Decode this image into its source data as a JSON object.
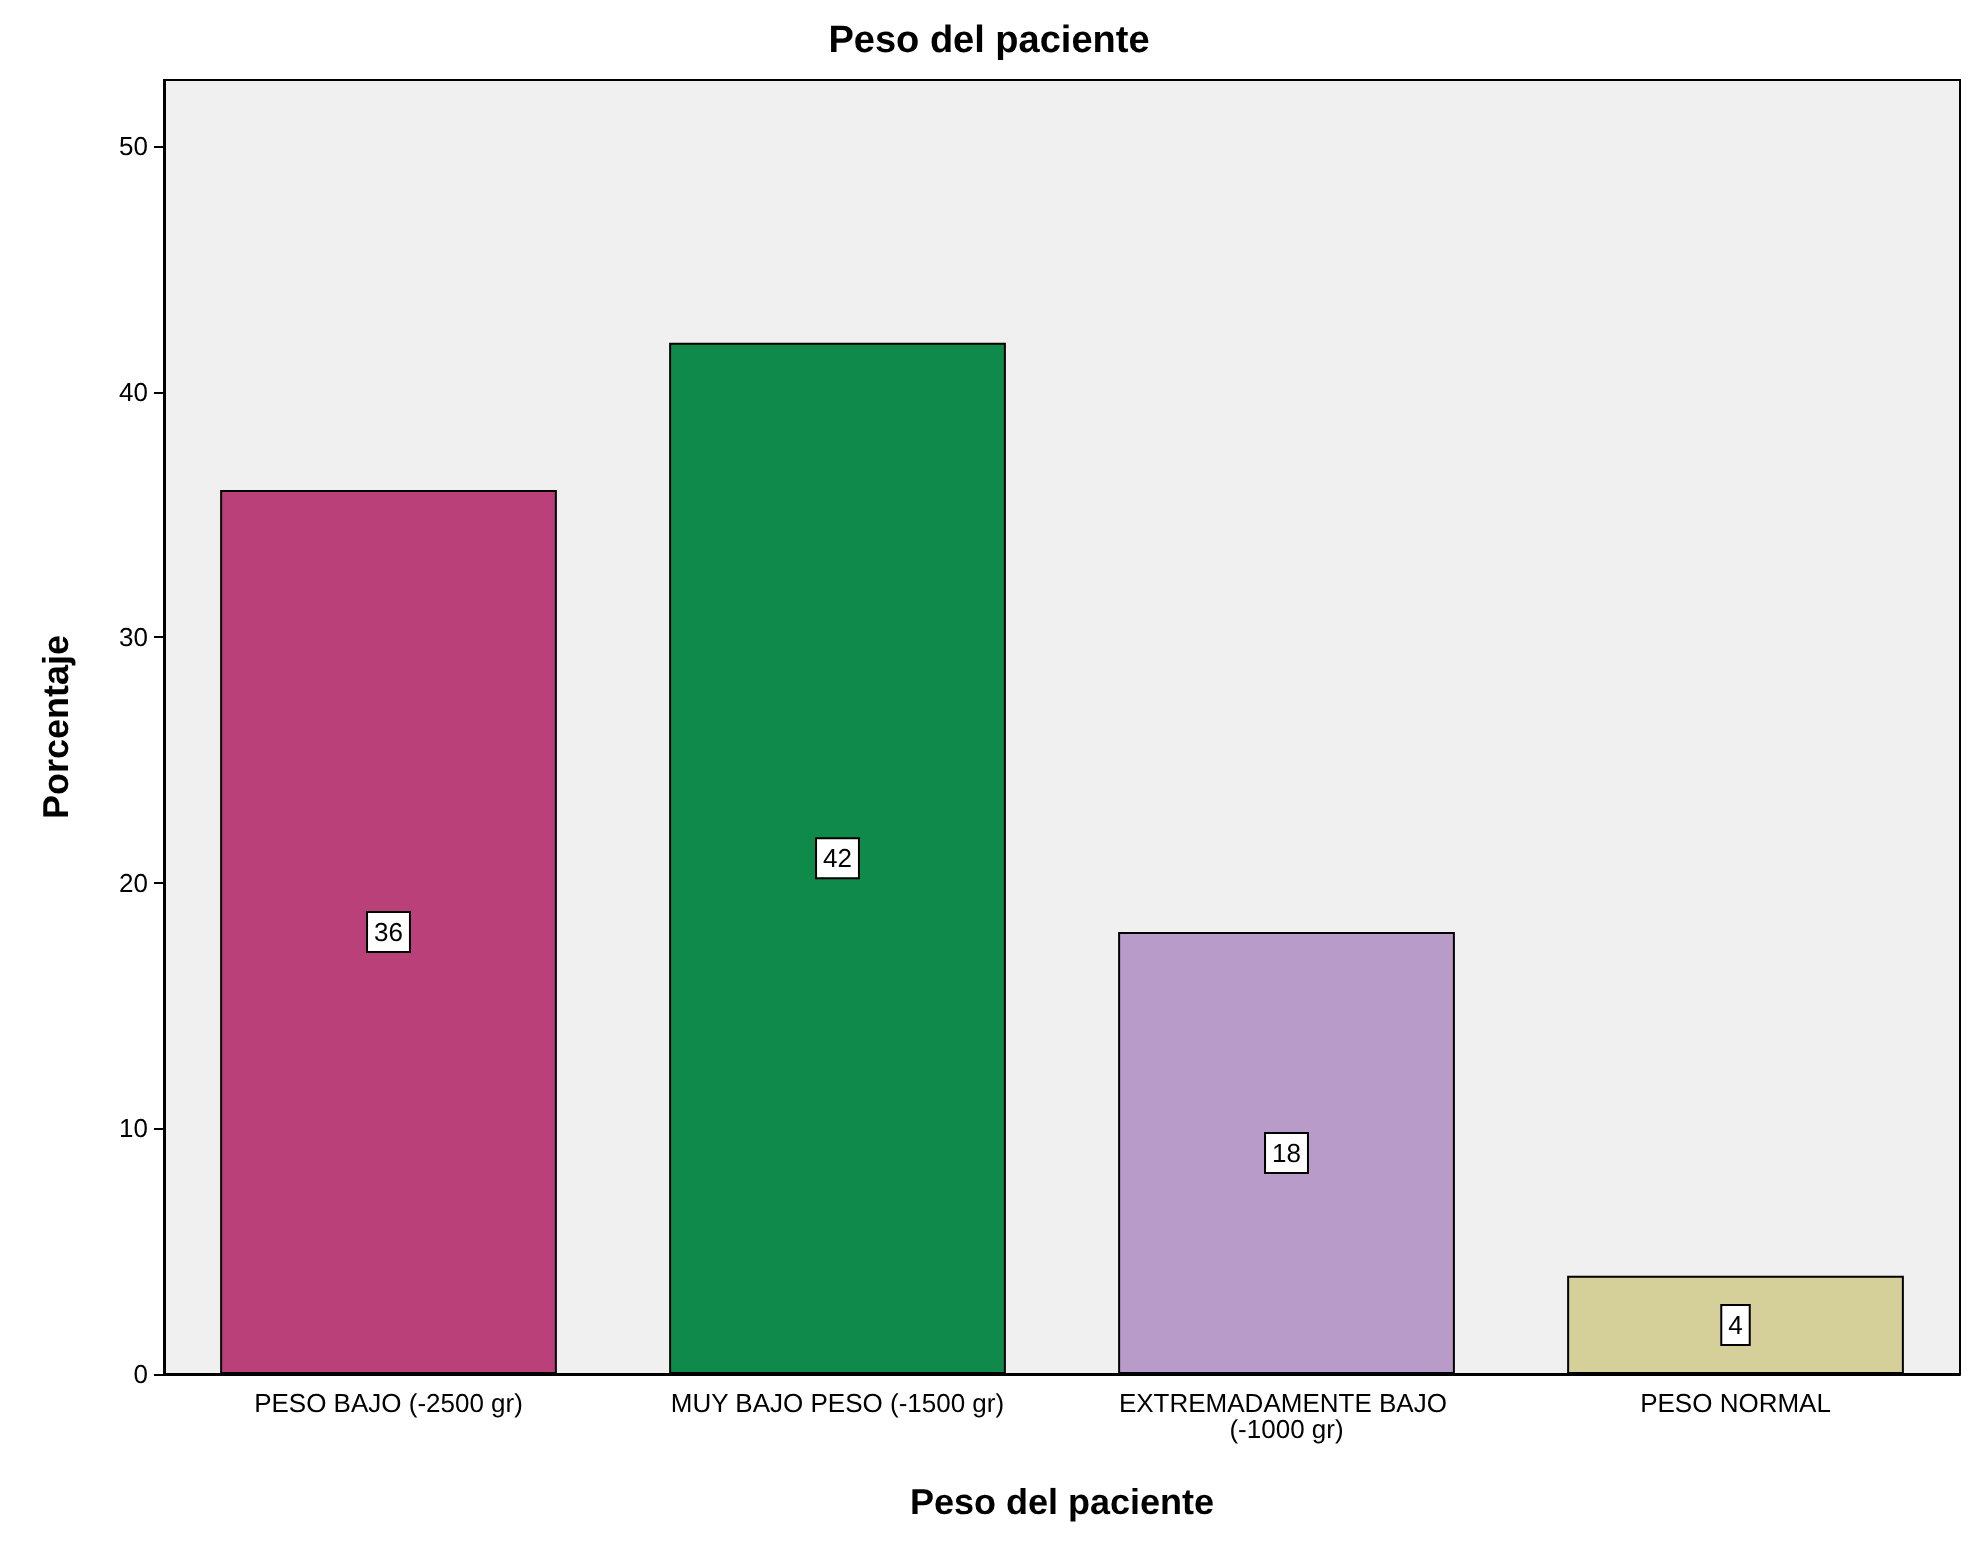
{
  "chart_data": {
    "type": "bar",
    "title": "Peso del paciente",
    "xlabel": "Peso del paciente",
    "ylabel": "Porcentaje",
    "categories": [
      "PESO BAJO (-2500 gr)",
      "MUY BAJO PESO (-1500 gr)",
      "EXTREMADAMENTE BAJO (-1000 gr)",
      "PESO NORMAL"
    ],
    "values": [
      36,
      42,
      18,
      4
    ],
    "colors": [
      "#b94079",
      "#0f8a4a",
      "#b89bc8",
      "#d5cf9a"
    ],
    "ylim": [
      0,
      52.7
    ],
    "yticks": [
      0,
      10,
      20,
      30,
      40,
      50
    ],
    "grid": false,
    "data_labels": true
  }
}
